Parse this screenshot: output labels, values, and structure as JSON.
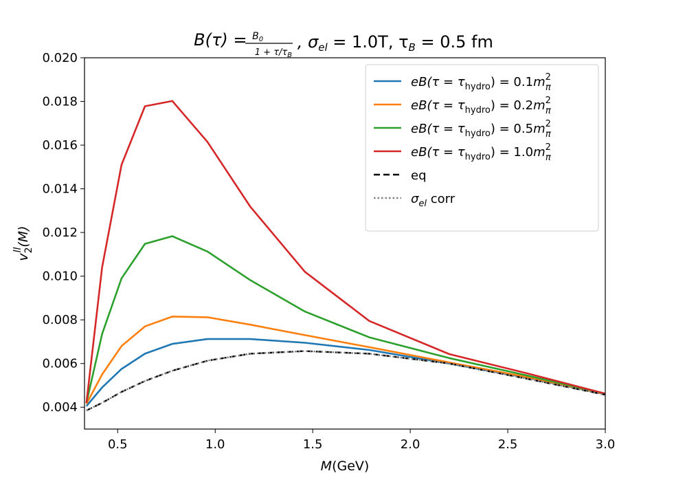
{
  "chart_data": {
    "type": "line",
    "title_main": "B(τ) = ",
    "title_frac_num": "B",
    "title_frac_num_sub": "0",
    "title_frac_den": "1 + τ/τ",
    "title_frac_den_sub": "B",
    "title_rest": ", σ",
    "title_sigma_sub": "el",
    "title_sigma_val": " = 1.0T, τ",
    "title_tau_sub": "B",
    "title_tau_val": " = 0.5 fm",
    "xlabel": "M",
    "xlabel_unit": "(GeV)",
    "ylabel": "v",
    "ylabel_sub": "2",
    "ylabel_sup": "ll",
    "ylabel_rest": "(M)",
    "xlim": [
      0.33,
      3.0
    ],
    "ylim": [
      0.003,
      0.02
    ],
    "xticks": [
      0.5,
      1.0,
      1.5,
      2.0,
      2.5,
      3.0
    ],
    "xtick_labels": [
      "0.5",
      "1.0",
      "1.5",
      "2.0",
      "2.5",
      "3.0"
    ],
    "yticks": [
      0.004,
      0.006,
      0.008,
      0.01,
      0.012,
      0.014,
      0.016,
      0.018,
      0.02
    ],
    "ytick_labels": [
      "0.004",
      "0.006",
      "0.008",
      "0.010",
      "0.012",
      "0.014",
      "0.016",
      "0.018",
      "0.020"
    ],
    "x": [
      0.34,
      0.42,
      0.52,
      0.64,
      0.78,
      0.96,
      1.18,
      1.46,
      1.79,
      2.2,
      2.6,
      3.0
    ],
    "series": [
      {
        "name": "0.1",
        "color": "#1f77b4",
        "style": "solid",
        "values": [
          0.00405,
          0.0049,
          0.00575,
          0.00645,
          0.0069,
          0.00712,
          0.00712,
          0.00695,
          0.00662,
          0.006,
          0.00535,
          0.0046
        ]
      },
      {
        "name": "0.2",
        "color": "#ff7f0e",
        "style": "solid",
        "values": [
          0.00415,
          0.0055,
          0.0068,
          0.0077,
          0.00815,
          0.00812,
          0.00778,
          0.0073,
          0.00675,
          0.00605,
          0.00538,
          0.0046
        ]
      },
      {
        "name": "0.5",
        "color": "#2ca02c",
        "style": "solid",
        "values": [
          0.0042,
          0.00735,
          0.0099,
          0.01148,
          0.01183,
          0.01113,
          0.00982,
          0.00838,
          0.0072,
          0.00625,
          0.00545,
          0.00462
        ]
      },
      {
        "name": "1.0",
        "color": "#d62728",
        "style": "solid",
        "values": [
          0.0042,
          0.0104,
          0.0151,
          0.01778,
          0.01802,
          0.01615,
          0.01318,
          0.0102,
          0.00795,
          0.00643,
          0.00555,
          0.00462
        ]
      },
      {
        "name": "eq",
        "color": "#000000",
        "style": "dashed",
        "values": [
          0.00385,
          0.0042,
          0.0047,
          0.0052,
          0.00567,
          0.00613,
          0.00645,
          0.00657,
          0.00645,
          0.006,
          0.0053,
          0.00457
        ]
      },
      {
        "name": "σel corr",
        "color": "#808080",
        "style": "dotted",
        "values": [
          0.00385,
          0.0042,
          0.0047,
          0.0052,
          0.00567,
          0.00613,
          0.00645,
          0.00657,
          0.00645,
          0.006,
          0.0053,
          0.00457
        ]
      }
    ],
    "legend": {
      "position": "top-right",
      "entry_prefix": "eB(τ = τ",
      "entry_sub": "hydro",
      "entry_mid": ") = ",
      "entry_unit": "m",
      "entry_unit_sub": "π",
      "entry_unit_sup": "2",
      "eq_label": "eq",
      "corr_label": "σ",
      "corr_sub": "el",
      "corr_rest": " corr"
    }
  }
}
